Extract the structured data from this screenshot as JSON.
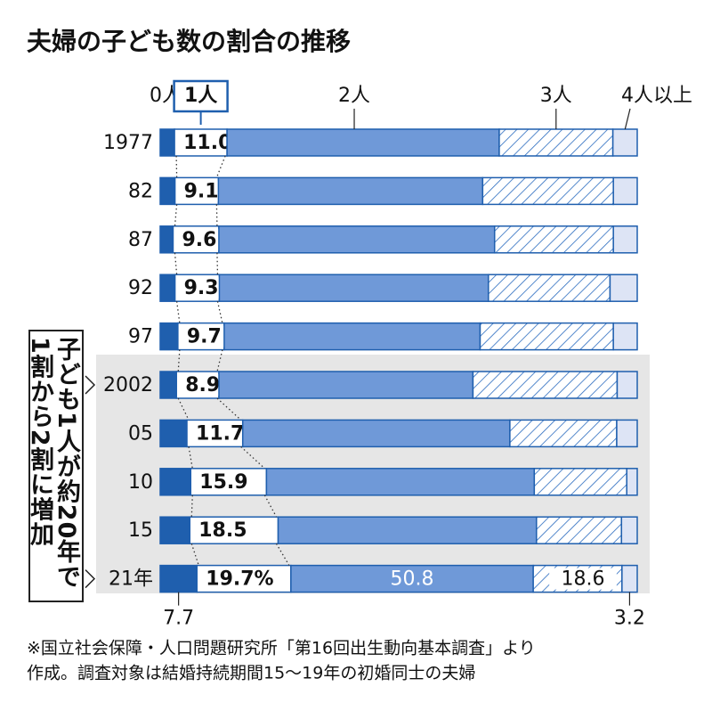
{
  "chart_data": {
    "type": "bar",
    "orientation": "horizontal",
    "stacked": true,
    "title": "夫婦の子ども数の割合の推移",
    "categories": [
      "1977",
      "82",
      "87",
      "92",
      "97",
      "2002",
      "05",
      "10",
      "15",
      "21年"
    ],
    "series": [
      {
        "name": "0人",
        "color": "#1f5fae",
        "values": [
          3.0,
          3.1,
          2.7,
          3.1,
          3.7,
          3.4,
          5.6,
          6.4,
          6.2,
          7.7
        ],
        "value_labels": [
          null,
          null,
          null,
          null,
          null,
          null,
          null,
          null,
          null,
          "7.7"
        ]
      },
      {
        "name": "1人",
        "color": "#ffffff",
        "values": [
          11.0,
          9.1,
          9.6,
          9.3,
          9.7,
          8.9,
          11.7,
          15.9,
          18.5,
          19.7
        ],
        "value_labels": [
          "11.0",
          "9.1",
          "9.6",
          "9.3",
          "9.7",
          "8.9",
          "11.7",
          "15.9",
          "18.5",
          "19.7%"
        ]
      },
      {
        "name": "2人",
        "color": "#6f99d8",
        "values": [
          57.0,
          55.4,
          57.8,
          56.4,
          53.6,
          53.2,
          56.0,
          56.2,
          54.1,
          50.8
        ],
        "value_labels": [
          null,
          null,
          null,
          null,
          null,
          null,
          null,
          null,
          null,
          "50.8"
        ]
      },
      {
        "name": "3人",
        "color": "#2a6bbf",
        "pattern": "hatch",
        "values": [
          23.8,
          27.4,
          24.9,
          25.5,
          27.9,
          30.2,
          22.4,
          19.4,
          17.8,
          18.6
        ],
        "value_labels": [
          null,
          null,
          null,
          null,
          null,
          null,
          null,
          null,
          null,
          "18.6"
        ]
      },
      {
        "name": "4人以上",
        "color": "#dde4f5",
        "values": [
          5.1,
          5.0,
          5.0,
          5.7,
          5.0,
          4.2,
          4.3,
          2.2,
          3.3,
          3.2
        ],
        "value_labels": [
          null,
          null,
          null,
          null,
          null,
          null,
          null,
          null,
          null,
          "3.2"
        ]
      }
    ],
    "annotation": "子ども1人が約20年で1割から2割に増加",
    "note": [
      "※国立社会保障・人口問題研究所「第16回出生動向基本調査」より",
      "作成。調査対象は結婚持続期間15～19年の初婚同士の夫婦"
    ]
  }
}
